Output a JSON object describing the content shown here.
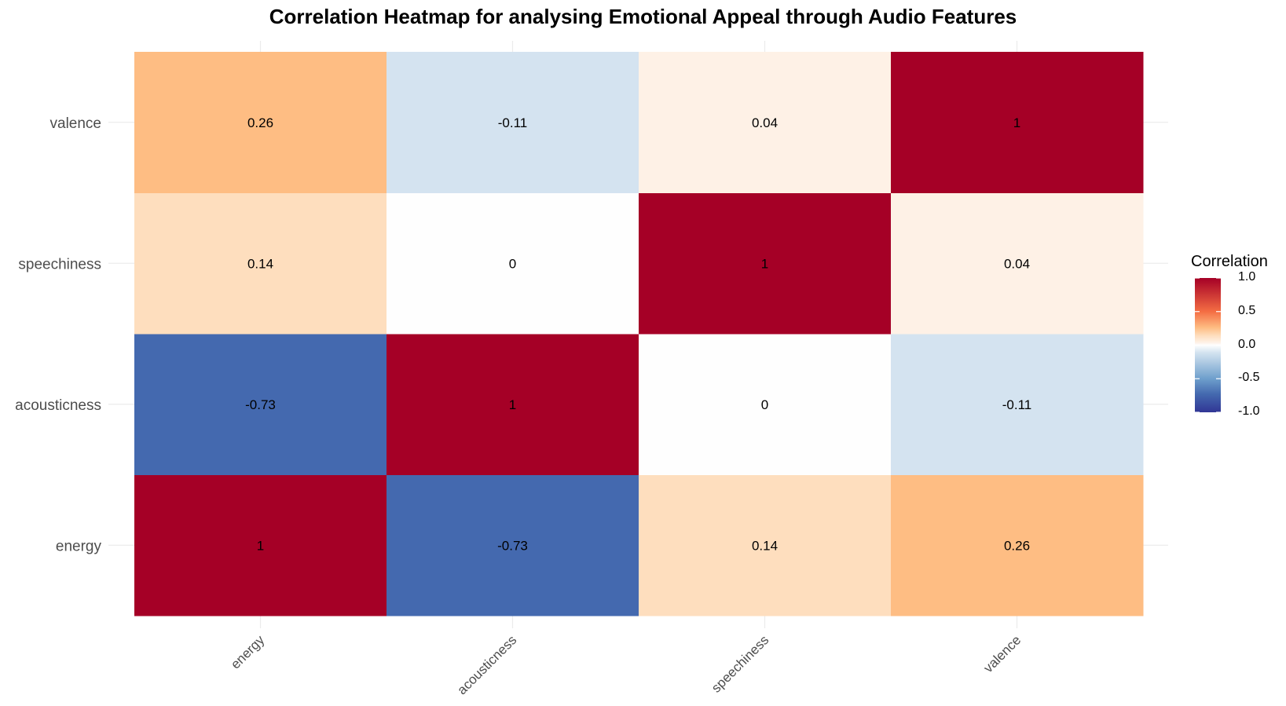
{
  "chart_data": {
    "type": "heatmap",
    "title": "Correlation Heatmap for analysing Emotional Appeal through Audio Features",
    "x_categories": [
      "energy",
      "acousticness",
      "speechiness",
      "valence"
    ],
    "y_categories": [
      "energy",
      "acousticness",
      "speechiness",
      "valence"
    ],
    "values": [
      [
        1,
        -0.73,
        0.14,
        0.26
      ],
      [
        -0.73,
        1,
        0,
        -0.11
      ],
      [
        0.14,
        0,
        1,
        0.04
      ],
      [
        0.26,
        -0.11,
        0.04,
        1
      ]
    ],
    "cell_labels": [
      [
        "1",
        "-0.73",
        "0.14",
        "0.26"
      ],
      [
        "-0.73",
        "1",
        "0",
        "-0.11"
      ],
      [
        "0.14",
        "0",
        "1",
        "0.04"
      ],
      [
        "0.26",
        "-0.11",
        "0.04",
        "1"
      ]
    ],
    "colorscale": {
      "min": -1,
      "max": 1,
      "low_color": "#313695",
      "mid_color": "#FFFFFF",
      "high_color": "#A50026",
      "stops": [
        {
          "v": -1.0,
          "c": "#313695"
        },
        {
          "v": -0.73,
          "c": "#4469AF"
        },
        {
          "v": -0.5,
          "c": "#6E9FCC"
        },
        {
          "v": -0.11,
          "c": "#D4E3F0"
        },
        {
          "v": 0.0,
          "c": "#FEFEFE"
        },
        {
          "v": 0.04,
          "c": "#FEF1E6"
        },
        {
          "v": 0.14,
          "c": "#FEDEBE"
        },
        {
          "v": 0.26,
          "c": "#FEBD83"
        },
        {
          "v": 0.5,
          "c": "#F46D43"
        },
        {
          "v": 1.0,
          "c": "#A50026"
        }
      ]
    },
    "legend": {
      "title": "Correlation",
      "ticks": [
        "1.0",
        "0.5",
        "0.0",
        "-0.5",
        "-1.0"
      ],
      "tick_values": [
        1.0,
        0.5,
        0.0,
        -0.5,
        -1.0
      ],
      "placement": "right"
    },
    "xlabel": "",
    "ylabel": ""
  }
}
